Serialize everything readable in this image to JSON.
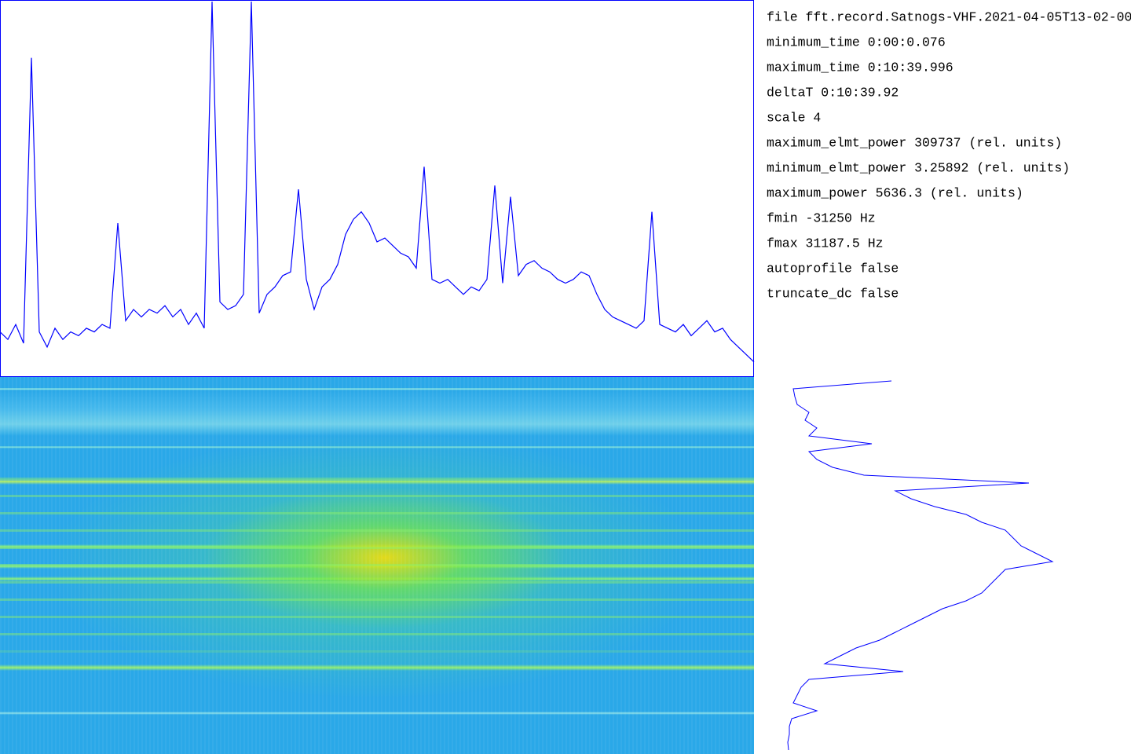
{
  "info": {
    "lines": [
      "file fft.record.Satnogs-VHF.2021-04-05T13-02-00",
      "minimum_time  0:00:0.076",
      "maximum_time  0:10:39.996",
      "deltaT  0:10:39.92",
      "scale 4",
      "maximum_elmt_power 309737 (rel. units)",
      "minimum_elmt_power 3.25892 (rel. units)",
      "maximum_power 5636.3 (rel. units)",
      "fmin -31250       Hz",
      "fmax 31187.5      Hz",
      "autoprofile false",
      "truncate_dc false"
    ]
  },
  "spectrum": {
    "type": "line",
    "color": "#0000ff",
    "ylim": [
      0,
      100
    ],
    "values": [
      12,
      10,
      14,
      9,
      85,
      12,
      8,
      13,
      10,
      12,
      11,
      13,
      12,
      14,
      13,
      41,
      15,
      18,
      16,
      18,
      17,
      19,
      16,
      18,
      14,
      17,
      13,
      100,
      20,
      18,
      19,
      22,
      100,
      17,
      22,
      24,
      27,
      28,
      50,
      26,
      18,
      24,
      26,
      30,
      38,
      42,
      44,
      41,
      36,
      37,
      35,
      33,
      32,
      29,
      56,
      26,
      25,
      26,
      24,
      22,
      24,
      23,
      26,
      51,
      25,
      48,
      27,
      30,
      31,
      29,
      28,
      26,
      25,
      26,
      28,
      27,
      22,
      18,
      16,
      15,
      14,
      13,
      15,
      44,
      14,
      13,
      12,
      14,
      11,
      13,
      15,
      12,
      13,
      10,
      8,
      6,
      4
    ]
  },
  "profile": {
    "type": "line",
    "color": "#0000ff",
    "xlim": [
      0,
      340
    ],
    "values": [
      135,
      10,
      12,
      15,
      30,
      25,
      40,
      30,
      110,
      30,
      40,
      60,
      100,
      310,
      140,
      160,
      190,
      230,
      250,
      280,
      290,
      300,
      320,
      340,
      280,
      270,
      260,
      250,
      230,
      200,
      180,
      160,
      140,
      120,
      90,
      70,
      50,
      150,
      30,
      20,
      15,
      10,
      40,
      8,
      5,
      5,
      3,
      4
    ]
  }
}
